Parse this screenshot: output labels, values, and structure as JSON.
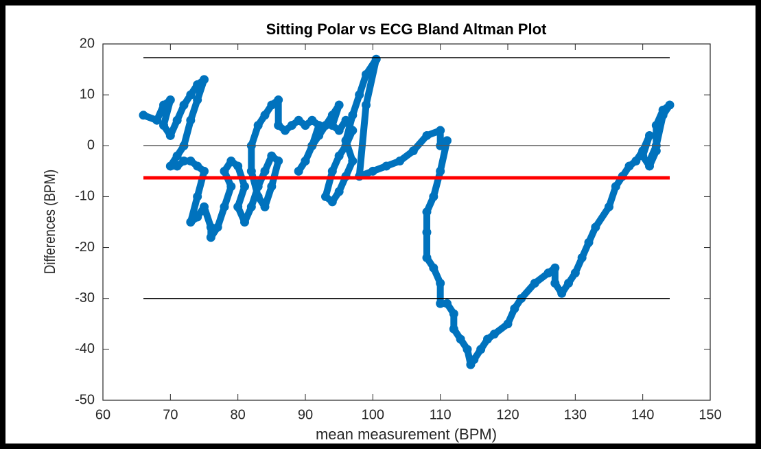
{
  "chart_data": {
    "type": "scatter",
    "title": "Sitting Polar vs ECG Bland Altman Plot",
    "x_label": "mean measurement (BPM)",
    "y_label": "Differences (BPM)",
    "xlim": [
      60,
      150
    ],
    "xticks": [
      60,
      70,
      80,
      90,
      100,
      110,
      120,
      130,
      140,
      150
    ],
    "ylim": [
      -50,
      20
    ],
    "yticks": [
      -50,
      -40,
      -30,
      -20,
      -10,
      0,
      10,
      20
    ],
    "series": [
      {
        "color": "#0072bd",
        "x": [
          66,
          68,
          69,
          70,
          69,
          70,
          71,
          72,
          73,
          74,
          75,
          74,
          73,
          72,
          71,
          70,
          71,
          72,
          73,
          74,
          75,
          74,
          73,
          74,
          75,
          76,
          76,
          77,
          78,
          79,
          78,
          79,
          80,
          81,
          80,
          81,
          82,
          83,
          84,
          85,
          86,
          85,
          84,
          83,
          82,
          82,
          83,
          84,
          85,
          86,
          86,
          87,
          88,
          89,
          90,
          91,
          92,
          91,
          90,
          89,
          90,
          91,
          92,
          93,
          94,
          95,
          94,
          95,
          96,
          97,
          96,
          95,
          94,
          93,
          94,
          95,
          96,
          97,
          96,
          97,
          98,
          99,
          100.5,
          99,
          98,
          100,
          102,
          104,
          106,
          108,
          110,
          110,
          111,
          110,
          109,
          108,
          108,
          108,
          109,
          110,
          110,
          111,
          112,
          112,
          113,
          114,
          114.5,
          115,
          116,
          117,
          118,
          120,
          121,
          122,
          124,
          126,
          127,
          127,
          128,
          129,
          130,
          131,
          132,
          133,
          135,
          136,
          137,
          138,
          139,
          140,
          141,
          140,
          141,
          142,
          142,
          143,
          144,
          143,
          142,
          141
        ],
        "values": [
          6,
          5,
          8,
          9,
          4,
          2,
          5,
          8,
          10,
          12,
          13,
          9,
          5,
          0,
          -2,
          -4,
          -4,
          -3,
          -3,
          -4,
          -5,
          -10,
          -15,
          -14,
          -12,
          -16,
          -18,
          -16,
          -12,
          -8,
          -5,
          -3,
          -4,
          -8,
          -12,
          -15,
          -12,
          -8,
          -5,
          -2,
          -3,
          -8,
          -12,
          -10,
          -5,
          0,
          4,
          6,
          8,
          9,
          4,
          3,
          4,
          5,
          4,
          5,
          4,
          0,
          -3,
          -5,
          -3,
          0,
          2,
          4,
          6,
          8,
          4,
          3,
          5,
          3,
          0,
          -2,
          -5,
          -10,
          -11,
          -9,
          -6,
          -3,
          1,
          6,
          10,
          14,
          17,
          8,
          -6,
          -5,
          -4,
          -3,
          -1,
          2,
          3,
          0,
          1,
          -5,
          -10,
          -13,
          -17,
          -22,
          -24,
          -27,
          -31,
          -31,
          -33,
          -36,
          -38,
          -40,
          -43,
          -42,
          -40,
          -38,
          -37,
          -35,
          -32,
          -30,
          -27,
          -25,
          -24,
          -27,
          -29,
          -27,
          -25,
          -22,
          -19,
          -16,
          -12,
          -8,
          -6,
          -4,
          -3,
          -1,
          2,
          -2,
          -4,
          -1,
          4,
          7,
          8,
          6,
          0,
          -3
        ]
      }
    ],
    "reference_lines": [
      {
        "y": 17.3,
        "color": "#000000",
        "width": 1.5
      },
      {
        "y": 0,
        "color": "#555555",
        "width": 1.5
      },
      {
        "y": -6.3,
        "color": "#ff0000",
        "width": 5
      },
      {
        "y": -30,
        "color": "#000000",
        "width": 1.5
      }
    ],
    "reference_xlim": [
      66,
      144
    ]
  }
}
